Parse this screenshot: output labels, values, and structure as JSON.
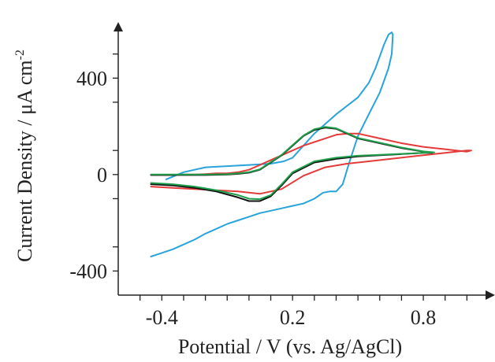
{
  "chart_data": {
    "type": "line",
    "title": "",
    "xlabel": "Potential / V (vs. Ag/AgCl)",
    "ylabel_main": "Current Density / μA cm",
    "ylabel_sup": "-2",
    "xlim": [
      -0.6,
      1.1
    ],
    "ylim": [
      -500,
      600
    ],
    "x_ticks": [
      -0.4,
      0.2,
      0.8
    ],
    "x_tick_labels": [
      "-0.4",
      "0.2",
      "0.8"
    ],
    "x_minor_ticks": [
      -0.5,
      -0.4,
      -0.3,
      -0.2,
      -0.1,
      0.0,
      0.1,
      0.2,
      0.3,
      0.4,
      0.5,
      0.6,
      0.7,
      0.8,
      0.9,
      1.0
    ],
    "y_ticks": [
      -400,
      0,
      400
    ],
    "y_tick_labels": [
      "-400",
      "0",
      "400"
    ],
    "y_minor_ticks": [
      -300,
      -100,
      100,
      300,
      500
    ],
    "grid": false,
    "legend": "none",
    "series": [
      {
        "color": "#29a3dc",
        "x": [
          -0.38,
          -0.3,
          -0.2,
          -0.1,
          0.0,
          0.1,
          0.16,
          0.2,
          0.3,
          0.4,
          0.5,
          0.55,
          0.58,
          0.6,
          0.62,
          0.64,
          0.655,
          0.66,
          0.655,
          0.64,
          0.6,
          0.55,
          0.5,
          0.46,
          0.43,
          0.4,
          0.37,
          0.34,
          0.3,
          0.25,
          0.2,
          0.15,
          0.1,
          0.05,
          0.0,
          -0.05,
          -0.1,
          -0.15,
          -0.2,
          -0.25,
          -0.3,
          -0.35,
          -0.4,
          -0.45
        ],
        "y": [
          -20,
          10,
          30,
          35,
          40,
          45,
          55,
          70,
          170,
          250,
          320,
          380,
          440,
          490,
          540,
          580,
          590,
          580,
          500,
          440,
          340,
          250,
          160,
          50,
          -40,
          -70,
          -70,
          -75,
          -100,
          -120,
          -130,
          -140,
          -150,
          -160,
          -175,
          -190,
          -205,
          -225,
          -245,
          -270,
          -290,
          -310,
          -325,
          -340
        ]
      },
      {
        "color": "#e53a3a",
        "x": [
          -0.45,
          -0.35,
          -0.25,
          -0.15,
          -0.05,
          0.05,
          0.15,
          0.25,
          0.35,
          0.45,
          0.55,
          0.65,
          0.75,
          0.85,
          0.95,
          1.0,
          1.02,
          1.0,
          0.9,
          0.8,
          0.7,
          0.6,
          0.5,
          0.45,
          0.4,
          0.35,
          0.3,
          0.25,
          0.2,
          0.15,
          0.1,
          0.05,
          0.0,
          -0.05,
          -0.1,
          -0.15,
          -0.2,
          -0.25,
          -0.3,
          -0.35,
          -0.4,
          -0.45
        ],
        "y": [
          -50,
          -55,
          -60,
          -65,
          -70,
          -80,
          -60,
          -5,
          30,
          45,
          55,
          65,
          75,
          85,
          95,
          100,
          100,
          95,
          105,
          115,
          130,
          150,
          170,
          170,
          165,
          150,
          135,
          120,
          100,
          80,
          60,
          40,
          20,
          10,
          5,
          5,
          2,
          0,
          0,
          -2,
          -2,
          -2
        ]
      },
      {
        "color": "#111111",
        "x": [
          -0.45,
          -0.35,
          -0.25,
          -0.15,
          -0.05,
          0.0,
          0.05,
          0.1,
          0.15,
          0.2,
          0.3,
          0.4,
          0.5,
          0.6,
          0.7,
          0.8,
          0.84,
          0.8,
          0.7,
          0.6,
          0.5,
          0.45,
          0.4,
          0.35,
          0.3,
          0.25,
          0.2,
          0.15,
          0.1,
          0.05,
          0.0,
          -0.05,
          -0.1,
          -0.2,
          -0.3,
          -0.4,
          -0.45
        ],
        "y": [
          -40,
          -45,
          -55,
          -70,
          -95,
          -110,
          -110,
          -90,
          -45,
          5,
          50,
          65,
          75,
          80,
          85,
          90,
          90,
          95,
          110,
          130,
          150,
          170,
          190,
          195,
          185,
          160,
          120,
          80,
          50,
          20,
          8,
          3,
          0,
          -2,
          -2,
          -2,
          -2
        ]
      },
      {
        "color": "#1e9d4a",
        "x": [
          -0.45,
          -0.35,
          -0.25,
          -0.15,
          -0.05,
          0.0,
          0.05,
          0.1,
          0.15,
          0.2,
          0.3,
          0.4,
          0.5,
          0.6,
          0.7,
          0.8,
          0.85,
          0.8,
          0.7,
          0.6,
          0.5,
          0.45,
          0.4,
          0.35,
          0.3,
          0.25,
          0.2,
          0.15,
          0.1,
          0.05,
          0.0,
          -0.05,
          -0.1,
          -0.2,
          -0.3,
          -0.4,
          -0.45
        ],
        "y": [
          -35,
          -40,
          -50,
          -65,
          -85,
          -100,
          -102,
          -85,
          -40,
          10,
          55,
          70,
          78,
          82,
          86,
          90,
          92,
          96,
          112,
          132,
          152,
          172,
          192,
          198,
          188,
          162,
          122,
          82,
          52,
          22,
          10,
          5,
          2,
          0,
          0,
          0,
          0
        ]
      }
    ]
  }
}
